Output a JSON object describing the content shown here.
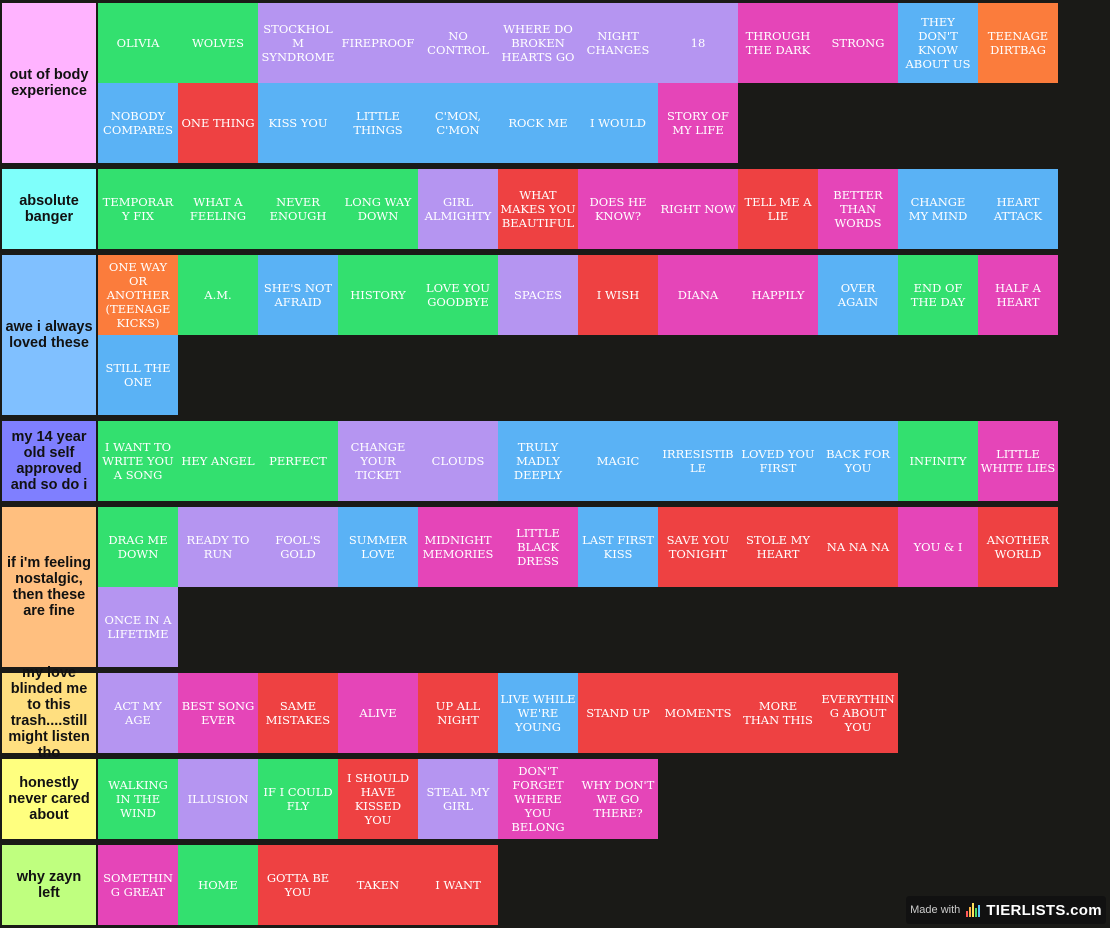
{
  "palette": {
    "green": "#33e06f",
    "purple": "#b595f1",
    "pink": "#e545b8",
    "blue": "#5ab2f5",
    "orange": "#fb7c3c",
    "red": "#ee4142"
  },
  "tiers": [
    {
      "label": "out of body experience",
      "color": "#ffb3ff",
      "rows": 2,
      "items": [
        {
          "text": "OLIVIA",
          "color": "green"
        },
        {
          "text": "WOLVES",
          "color": "green"
        },
        {
          "text": "STOCKHOLM SYNDROME",
          "color": "purple"
        },
        {
          "text": "FIREPROOF",
          "color": "purple"
        },
        {
          "text": "NO CONTROL",
          "color": "purple"
        },
        {
          "text": "WHERE DO BROKEN HEARTS GO",
          "color": "purple"
        },
        {
          "text": "NIGHT CHANGES",
          "color": "purple"
        },
        {
          "text": "18",
          "color": "purple"
        },
        {
          "text": "THROUGH THE DARK",
          "color": "pink"
        },
        {
          "text": "STRONG",
          "color": "pink"
        },
        {
          "text": "THEY DON'T KNOW ABOUT US",
          "color": "blue"
        },
        {
          "text": "TEENAGE DIRTBAG",
          "color": "orange"
        },
        {
          "text": "NOBODY COMPARES",
          "color": "blue"
        },
        {
          "text": "ONE THING",
          "color": "red"
        },
        {
          "text": "KISS YOU",
          "color": "blue"
        },
        {
          "text": "LITTLE THINGS",
          "color": "blue"
        },
        {
          "text": "C'MON, C'MON",
          "color": "blue"
        },
        {
          "text": "ROCK ME",
          "color": "blue"
        },
        {
          "text": "I WOULD",
          "color": "blue"
        },
        {
          "text": "STORY OF MY LIFE",
          "color": "pink"
        }
      ]
    },
    {
      "label": "absolute banger",
      "color": "#7ffffb",
      "rows": 1,
      "items": [
        {
          "text": "TEMPORARY FIX",
          "color": "green"
        },
        {
          "text": "WHAT A FEELING",
          "color": "green"
        },
        {
          "text": "NEVER ENOUGH",
          "color": "green"
        },
        {
          "text": "LONG WAY DOWN",
          "color": "green"
        },
        {
          "text": "GIRL ALMIGHTY",
          "color": "purple"
        },
        {
          "text": "WHAT MAKES YOU BEAUTIFUL",
          "color": "red"
        },
        {
          "text": "DOES HE KNOW?",
          "color": "pink"
        },
        {
          "text": "RIGHT NOW",
          "color": "pink"
        },
        {
          "text": "TELL ME A LIE",
          "color": "red"
        },
        {
          "text": "BETTER THAN WORDS",
          "color": "pink"
        },
        {
          "text": "CHANGE MY MIND",
          "color": "blue"
        },
        {
          "text": "HEART ATTACK",
          "color": "blue"
        }
      ]
    },
    {
      "label": "awe i always loved these",
      "color": "#80c0ff",
      "rows": 2,
      "items": [
        {
          "text": "ONE WAY OR ANOTHER (TEENAGE KICKS)",
          "color": "orange"
        },
        {
          "text": "A.M.",
          "color": "green"
        },
        {
          "text": "SHE'S NOT AFRAID",
          "color": "blue"
        },
        {
          "text": "HISTORY",
          "color": "green"
        },
        {
          "text": "LOVE YOU GOODBYE",
          "color": "green"
        },
        {
          "text": "SPACES",
          "color": "purple"
        },
        {
          "text": "I WISH",
          "color": "red"
        },
        {
          "text": "DIANA",
          "color": "pink"
        },
        {
          "text": "HAPPILY",
          "color": "pink"
        },
        {
          "text": "OVER AGAIN",
          "color": "blue"
        },
        {
          "text": "END OF THE DAY",
          "color": "green"
        },
        {
          "text": "HALF A HEART",
          "color": "pink"
        },
        {
          "text": "STILL THE ONE",
          "color": "blue"
        }
      ]
    },
    {
      "label": "my 14 year old self approved and so do i",
      "color": "#7f7fff",
      "rows": 1,
      "items": [
        {
          "text": "I WANT TO WRITE YOU A SONG",
          "color": "green"
        },
        {
          "text": "HEY ANGEL",
          "color": "green"
        },
        {
          "text": "PERFECT",
          "color": "green"
        },
        {
          "text": "CHANGE YOUR TICKET",
          "color": "purple"
        },
        {
          "text": "CLOUDS",
          "color": "purple"
        },
        {
          "text": "TRULY MADLY DEEPLY",
          "color": "blue"
        },
        {
          "text": "MAGIC",
          "color": "blue"
        },
        {
          "text": "IRRESISTIBLE",
          "color": "blue"
        },
        {
          "text": "LOVED YOU FIRST",
          "color": "blue"
        },
        {
          "text": "BACK FOR YOU",
          "color": "blue"
        },
        {
          "text": "INFINITY",
          "color": "green"
        },
        {
          "text": "LITTLE WHITE LIES",
          "color": "pink"
        }
      ]
    },
    {
      "label": "if i'm feeling nostalgic, then these are fine",
      "color": "#ffbf7f",
      "rows": 2,
      "items": [
        {
          "text": "DRAG ME DOWN",
          "color": "green"
        },
        {
          "text": "READY TO RUN",
          "color": "purple"
        },
        {
          "text": "FOOL'S GOLD",
          "color": "purple"
        },
        {
          "text": "SUMMER LOVE",
          "color": "blue"
        },
        {
          "text": "MIDNIGHT MEMORIES",
          "color": "pink"
        },
        {
          "text": "LITTLE BLACK DRESS",
          "color": "pink"
        },
        {
          "text": "LAST FIRST KISS",
          "color": "blue"
        },
        {
          "text": "SAVE YOU TONIGHT",
          "color": "red"
        },
        {
          "text": "STOLE MY HEART",
          "color": "red"
        },
        {
          "text": "NA NA NA",
          "color": "red"
        },
        {
          "text": "YOU & I",
          "color": "pink"
        },
        {
          "text": "ANOTHER WORLD",
          "color": "red"
        },
        {
          "text": "ONCE IN A LIFETIME",
          "color": "purple"
        }
      ]
    },
    {
      "label": "my love blinded me to this trash....still might listen tho",
      "color": "#ffdf80",
      "rows": 1,
      "items": [
        {
          "text": "ACT MY AGE",
          "color": "purple"
        },
        {
          "text": "BEST SONG EVER",
          "color": "pink"
        },
        {
          "text": "SAME MISTAKES",
          "color": "red"
        },
        {
          "text": "ALIVE",
          "color": "pink"
        },
        {
          "text": "UP ALL NIGHT",
          "color": "red"
        },
        {
          "text": "LIVE WHILE WE'RE YOUNG",
          "color": "blue"
        },
        {
          "text": "STAND UP",
          "color": "red"
        },
        {
          "text": "MOMENTS",
          "color": "red"
        },
        {
          "text": "MORE THAN THIS",
          "color": "red"
        },
        {
          "text": "EVERYTHING ABOUT YOU",
          "color": "red"
        }
      ]
    },
    {
      "label": "honestly never cared about",
      "color": "#ffff7f",
      "rows": 1,
      "items": [
        {
          "text": "WALKING IN THE WIND",
          "color": "green"
        },
        {
          "text": "ILLUSION",
          "color": "purple"
        },
        {
          "text": "IF I COULD FLY",
          "color": "green"
        },
        {
          "text": "I SHOULD HAVE KISSED YOU",
          "color": "red"
        },
        {
          "text": "STEAL MY GIRL",
          "color": "purple"
        },
        {
          "text": "DON'T FORGET WHERE YOU BELONG",
          "color": "pink"
        },
        {
          "text": "WHY DON'T WE GO THERE?",
          "color": "pink"
        }
      ]
    },
    {
      "label": "why zayn left",
      "color": "#bfff7f",
      "rows": 1,
      "items": [
        {
          "text": "SOMETHING GREAT",
          "color": "pink"
        },
        {
          "text": "HOME",
          "color": "green"
        },
        {
          "text": "GOTTA BE YOU",
          "color": "red"
        },
        {
          "text": "TAKEN",
          "color": "red"
        },
        {
          "text": "I WANT",
          "color": "red"
        }
      ]
    }
  ],
  "watermark": {
    "prefix": "Made with",
    "brand": "TIERLISTS.com",
    "bar_colors": [
      "#ff5a5a",
      "#ffb347",
      "#ffe35a",
      "#4cd964",
      "#5ac8fa"
    ]
  }
}
